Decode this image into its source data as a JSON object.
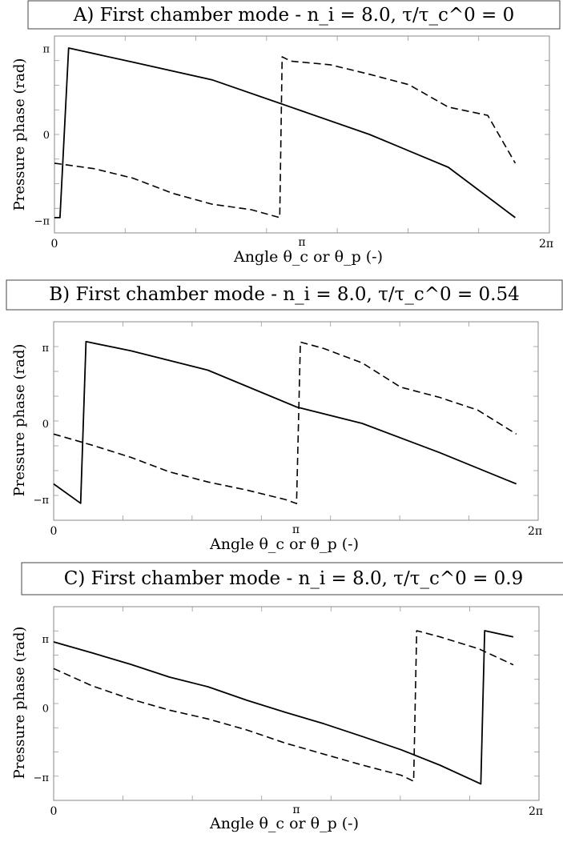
{
  "chart_data": [
    {
      "type": "line",
      "title": "A) First chamber mode - n_i = 8.0,  τ/τ_c^0 = 0",
      "xlabel": "Angle θ_c or θ_p (-)",
      "ylabel": "Pressure phase (rad)",
      "x_ticks": [
        "0",
        "π",
        "2π"
      ],
      "y_ticks": [
        "π",
        "0",
        "−π"
      ],
      "xlim": [
        0,
        6.283
      ],
      "ylim": [
        -3.6,
        3.6
      ],
      "grid": false,
      "series": [
        {
          "style": "solid",
          "x": [
            0.0,
            0.07,
            0.18,
            1.0,
            2.0,
            3.0,
            4.0,
            5.0,
            5.85
          ],
          "y": [
            -3.04,
            -3.04,
            3.16,
            2.64,
            2.0,
            1.0,
            0.0,
            -1.2,
            -3.04
          ]
        },
        {
          "style": "dashed",
          "x": [
            0.0,
            0.5,
            1.0,
            1.5,
            2.0,
            2.5,
            2.86,
            2.89,
            3.0,
            3.5,
            4.0,
            4.5,
            5.0,
            5.5,
            5.85
          ],
          "y": [
            -1.05,
            -1.25,
            -1.6,
            -2.15,
            -2.55,
            -2.75,
            -3.04,
            2.84,
            2.68,
            2.55,
            2.2,
            1.82,
            1.0,
            0.7,
            -1.05
          ]
        }
      ]
    },
    {
      "type": "line",
      "title": "B) First chamber mode - n_i = 8.0,  τ/τ_c^0 = 0.54",
      "xlabel": "Angle θ_c or θ_p (-)",
      "ylabel": "Pressure phase (rad)",
      "x_ticks": [
        "0",
        "π",
        "2π"
      ],
      "y_ticks": [
        "π",
        "0",
        "−π"
      ],
      "xlim": [
        0,
        6.283
      ],
      "ylim": [
        -4.0,
        4.2
      ],
      "grid": false,
      "series": [
        {
          "style": "solid",
          "x": [
            0.0,
            0.35,
            0.42,
            1.0,
            2.0,
            3.15,
            4.0,
            5.0,
            6.0
          ],
          "y": [
            -2.5,
            -3.3,
            3.38,
            3.0,
            2.2,
            0.68,
            0.0,
            -1.2,
            -2.5
          ]
        },
        {
          "style": "dashed",
          "x": [
            0.0,
            0.5,
            1.0,
            1.5,
            2.0,
            2.5,
            3.0,
            3.15,
            3.2,
            3.5,
            4.0,
            4.5,
            5.0,
            5.5,
            6.0
          ],
          "y": [
            -0.44,
            -0.9,
            -1.4,
            -2.0,
            -2.42,
            -2.75,
            -3.14,
            -3.31,
            3.36,
            3.1,
            2.5,
            1.5,
            1.08,
            0.55,
            -0.44
          ]
        }
      ]
    },
    {
      "type": "line",
      "title": "C) First chamber mode - n_i = 8.0,  τ/τ_c^0 = 0.9",
      "xlabel": "Angle θ_c or θ_p (-)",
      "ylabel": "Pressure phase (rad)",
      "x_ticks": [
        "0",
        "π",
        "2π"
      ],
      "y_ticks": [
        "π",
        "0",
        "−π"
      ],
      "xlim": [
        0,
        6.283
      ],
      "ylim": [
        -4.2,
        4.6
      ],
      "grid": false,
      "series": [
        {
          "style": "solid",
          "x": [
            0.0,
            0.5,
            1.0,
            1.5,
            2.0,
            2.5,
            3.0,
            3.5,
            4.0,
            4.5,
            5.0,
            5.53,
            5.58,
            5.95
          ],
          "y": [
            3.0,
            2.5,
            1.98,
            1.4,
            0.96,
            0.35,
            -0.2,
            -0.72,
            -1.3,
            -1.9,
            -2.6,
            -3.45,
            3.51,
            3.23
          ]
        },
        {
          "style": "dashed",
          "x": [
            0.0,
            0.5,
            1.0,
            1.5,
            2.0,
            2.5,
            3.0,
            3.5,
            4.0,
            4.5,
            4.66,
            4.7,
            5.0,
            5.5,
            5.95
          ],
          "y": [
            1.79,
            1.0,
            0.4,
            -0.1,
            -0.5,
            -1.0,
            -1.6,
            -2.1,
            -2.6,
            -3.06,
            -3.33,
            3.51,
            3.23,
            2.69,
            1.96
          ]
        }
      ]
    }
  ]
}
